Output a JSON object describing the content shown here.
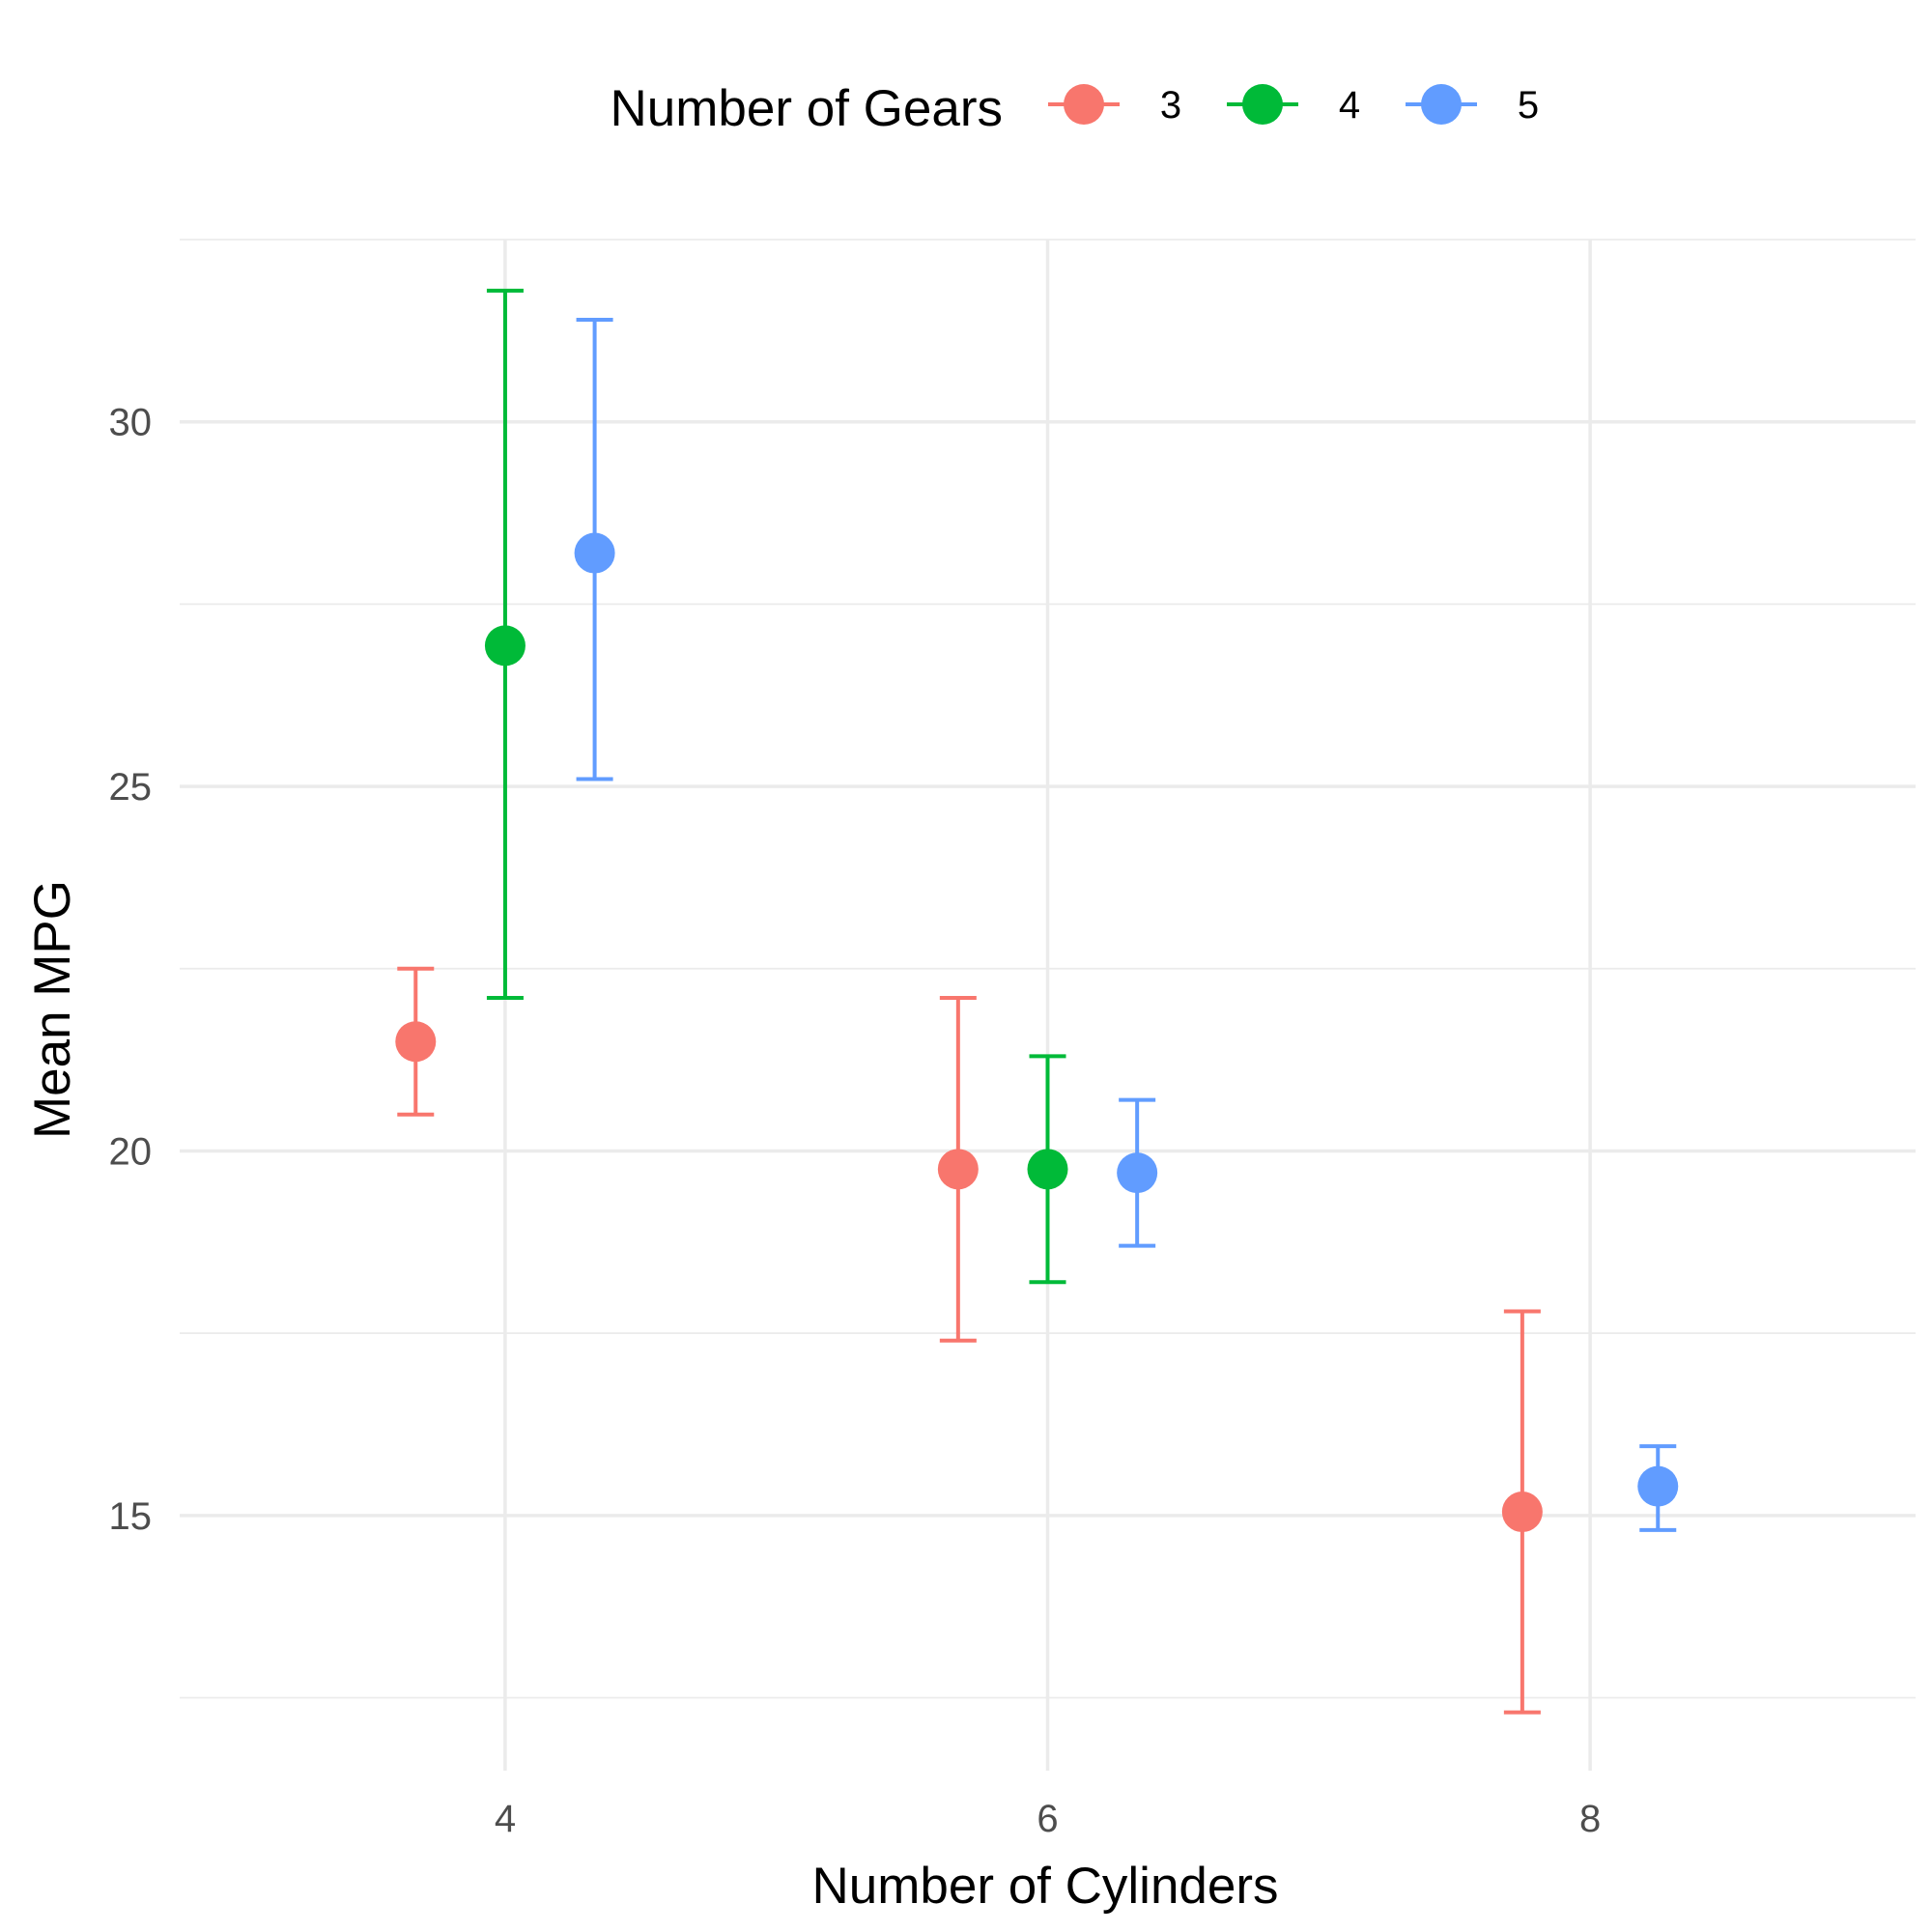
{
  "chart_data": {
    "type": "scatter",
    "subtype": "point-with-errorbars",
    "title": "",
    "xlabel": "Number of Cylinders",
    "ylabel": "Mean MPG",
    "xlim": [
      2.8,
      9.2
    ],
    "ylim": [
      11.5,
      32.5
    ],
    "x_ticks": [
      4,
      6,
      8
    ],
    "y_ticks": [
      15,
      20,
      25,
      30
    ],
    "x_minor_ticks": [],
    "y_minor_ticks": [
      12.5,
      17.5,
      22.5,
      27.5,
      32.5
    ],
    "grid": true,
    "legend": {
      "title": "Number of Gears",
      "position": "top",
      "entries": [
        "3",
        "4",
        "5"
      ]
    },
    "colors": {
      "3": "#F8766D",
      "4": "#00BA38",
      "5": "#619CFF"
    },
    "series": [
      {
        "name": "3",
        "points": [
          {
            "x": 4,
            "dodge": -0.33,
            "y": 21.5,
            "ymin": 20.5,
            "ymax": 22.5
          },
          {
            "x": 6,
            "dodge": -0.33,
            "y": 19.75,
            "ymin": 17.4,
            "ymax": 22.1
          },
          {
            "x": 8,
            "dodge": -0.25,
            "y": 15.05,
            "ymin": 12.3,
            "ymax": 17.8
          }
        ]
      },
      {
        "name": "4",
        "points": [
          {
            "x": 4,
            "dodge": 0,
            "y": 26.93,
            "ymin": 22.1,
            "ymax": 31.8
          },
          {
            "x": 6,
            "dodge": 0,
            "y": 19.75,
            "ymin": 18.2,
            "ymax": 21.3
          }
        ]
      },
      {
        "name": "5",
        "points": [
          {
            "x": 4,
            "dodge": 0.33,
            "y": 28.2,
            "ymin": 25.1,
            "ymax": 31.4
          },
          {
            "x": 6,
            "dodge": 0.33,
            "y": 19.7,
            "ymin": 18.7,
            "ymax": 20.7
          },
          {
            "x": 8,
            "dodge": 0.25,
            "y": 15.4,
            "ymin": 14.8,
            "ymax": 15.95
          }
        ]
      }
    ]
  }
}
